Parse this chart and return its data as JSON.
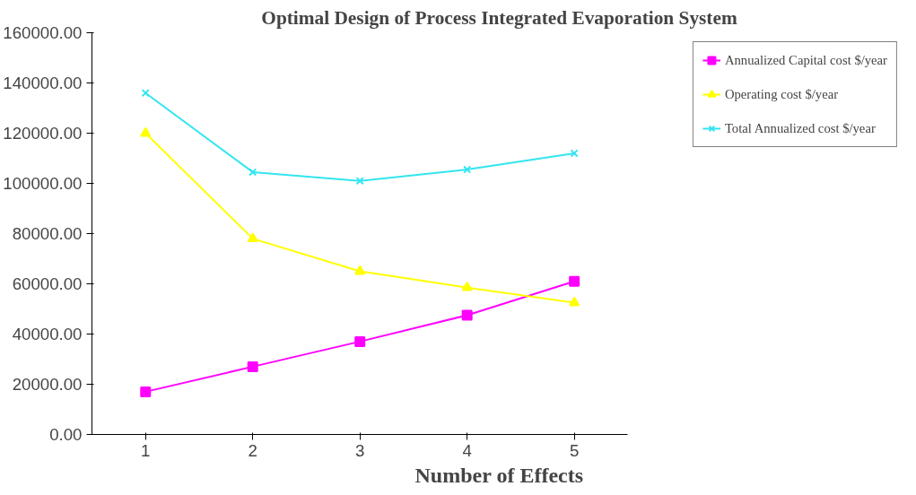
{
  "chart_data": {
    "type": "line",
    "title": "Optimal Design of Process Integrated Evaporation System",
    "xlabel": "Number of Effects",
    "categories": [
      "1",
      "2",
      "3",
      "4",
      "5"
    ],
    "series": [
      {
        "name": "Annualized Capital cost $/year",
        "color": "#ff00ff",
        "marker": "square",
        "values": [
          17000,
          27000,
          37000,
          47500,
          61000
        ]
      },
      {
        "name": "Operating cost $/year",
        "color": "#ffff00",
        "marker": "triangle",
        "values": [
          120000,
          78000,
          65000,
          58500,
          52500
        ]
      },
      {
        "name": "Total Annualized cost $/year",
        "color": "#33e5f0",
        "marker": "cross",
        "values": [
          136000,
          104500,
          101000,
          105500,
          112000
        ]
      }
    ],
    "ylim": [
      0,
      160000
    ],
    "yticks": [
      {
        "value": 0,
        "label": "0.00"
      },
      {
        "value": 20000,
        "label": "20000.00"
      },
      {
        "value": 40000,
        "label": "40000.00"
      },
      {
        "value": 60000,
        "label": "60000.00"
      },
      {
        "value": 80000,
        "label": "80000.00"
      },
      {
        "value": 100000,
        "label": "100000.00"
      },
      {
        "value": 120000,
        "label": "120000.00"
      },
      {
        "value": 140000,
        "label": "140000.00"
      },
      {
        "value": 160000,
        "label": "160000.00"
      }
    ],
    "grid": false,
    "legend": "right"
  }
}
